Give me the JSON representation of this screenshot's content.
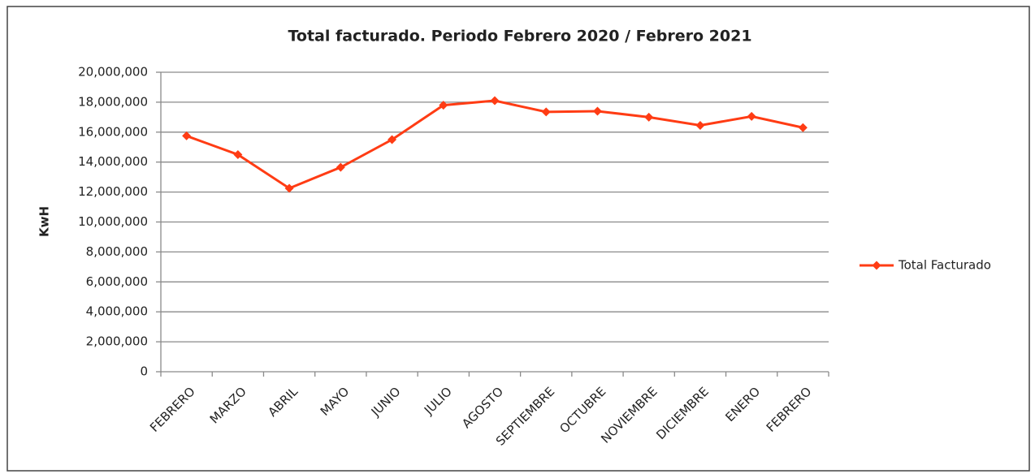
{
  "chart_data": {
    "type": "line",
    "title": "Total facturado. Periodo Febrero 2020 / Febrero 2021",
    "y_label": "KwH",
    "categories": [
      "FEBRERO",
      "MARZO",
      "ABRIL",
      "MAYO",
      "JUNIO",
      "JULIO",
      "AGOSTO",
      "SEPTIEMBRE",
      "OCTUBRE",
      "NOVIEMBRE",
      "DICIEMBRE",
      "ENERO",
      "FEBRERO"
    ],
    "series": [
      {
        "name": "Total Facturado",
        "color": "#ff3c14",
        "values": [
          15750000,
          14500000,
          12250000,
          13650000,
          15500000,
          17800000,
          18100000,
          17350000,
          17400000,
          17000000,
          16450000,
          17050000,
          16300000
        ]
      }
    ],
    "ylim": [
      0,
      20000000
    ],
    "yticks": [
      0,
      {
        "value": 2000000,
        "label": "2,000,000"
      },
      {
        "value": 4000000,
        "label": "4,000,000"
      },
      {
        "value": 6000000,
        "label": "6,000,000"
      },
      {
        "value": 8000000,
        "label": "8,000,000"
      },
      {
        "value": 10000000,
        "label": "10,000,000"
      },
      {
        "value": 12000000,
        "label": "12,000,000"
      },
      {
        "value": 14000000,
        "label": "14,000,000"
      },
      {
        "value": 16000000,
        "label": "16,000,000"
      },
      {
        "value": 18000000,
        "label": "18,000,000"
      },
      {
        "value": 20000000,
        "label": "20,000,000"
      }
    ],
    "grid": true,
    "legend": "right"
  }
}
